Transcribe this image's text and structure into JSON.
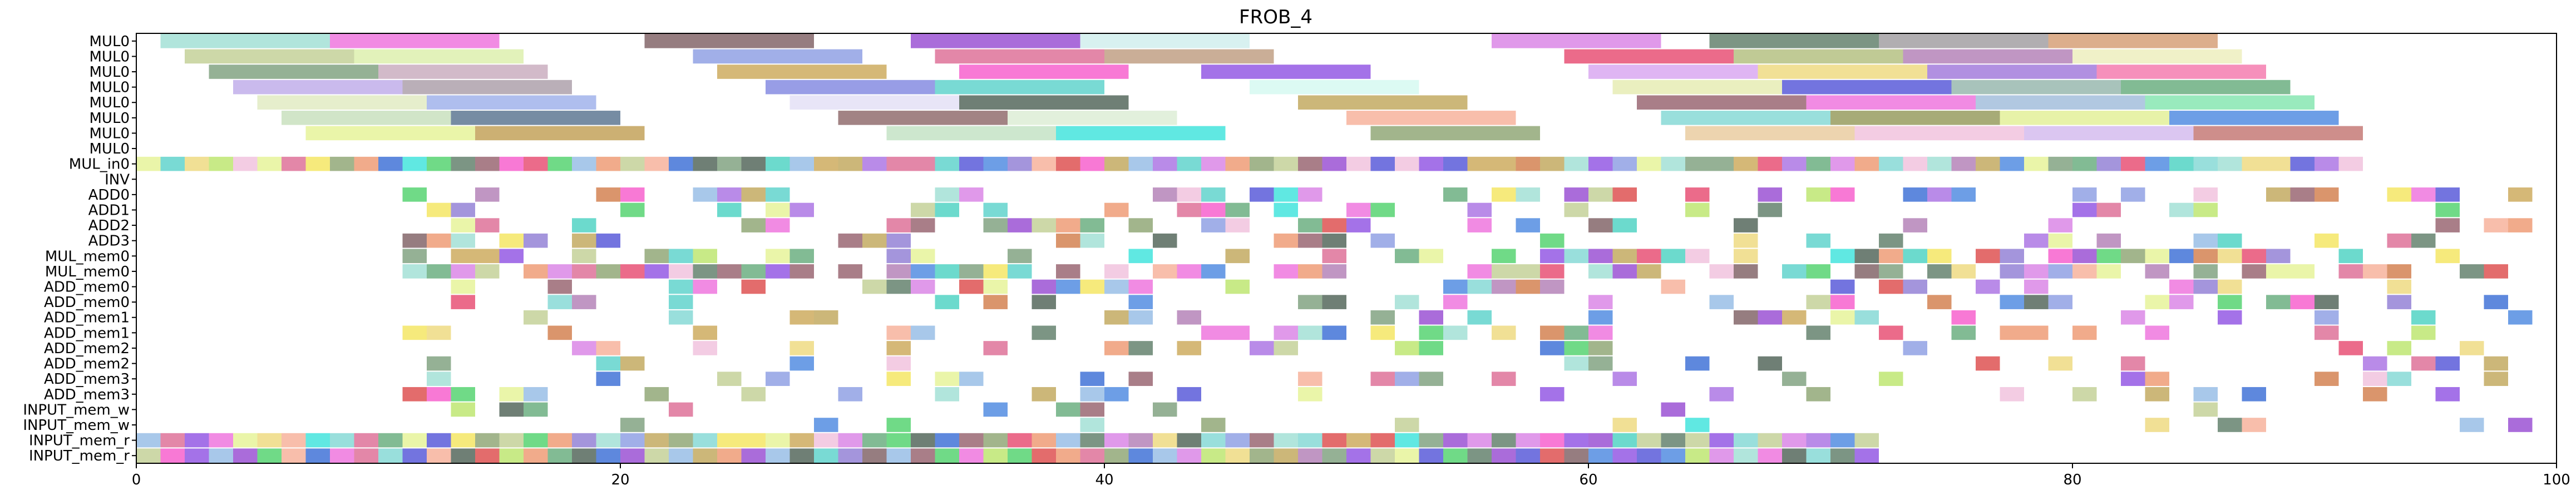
{
  "chart_data": {
    "type": "gantt",
    "title": "FROB_4",
    "xlim": [
      0,
      100
    ],
    "xticks": [
      0,
      20,
      40,
      60,
      80,
      100
    ],
    "rows": [
      "MUL0",
      "MUL0",
      "MUL0",
      "MUL0",
      "MUL0",
      "MUL0",
      "MUL0",
      "MUL0",
      "MUL_in0",
      "INV",
      "ADD0",
      "ADD1",
      "ADD2",
      "ADD3",
      "MUL_mem0",
      "MUL_mem0",
      "ADD_mem0",
      "ADD_mem0",
      "ADD_mem1",
      "ADD_mem1",
      "ADD_mem2",
      "ADD_mem2",
      "ADD_mem3",
      "ADD_mem3",
      "INPUT_mem_w",
      "INPUT_mem_w",
      "INPUT_mem_r",
      "INPUT_mem_r"
    ],
    "long_rows": [
      {
        "row": 0,
        "tasks": [
          {
            "start": 1,
            "end": 8,
            "color": "#a8e2d8"
          },
          {
            "start": 8,
            "end": 15,
            "color": "#f07ee0"
          },
          {
            "start": 21,
            "end": 28,
            "color": "#8b6f72"
          },
          {
            "start": 32,
            "end": 39,
            "color": "#a15cd6"
          },
          {
            "start": 39,
            "end": 46,
            "color": "#d4efee"
          },
          {
            "start": 56,
            "end": 63,
            "color": "#dd8ee8"
          },
          {
            "start": 65,
            "end": 72,
            "color": "#6e8a77"
          },
          {
            "start": 72,
            "end": 79,
            "color": "#a9a5a9"
          },
          {
            "start": 79,
            "end": 86,
            "color": "#d8a57f"
          }
        ]
      },
      {
        "row": 1,
        "tasks": [
          {
            "start": 2,
            "end": 9,
            "color": "#c8d49e"
          },
          {
            "start": 9,
            "end": 16,
            "color": "#dff1b2"
          },
          {
            "start": 23,
            "end": 30,
            "color": "#97a6e6"
          },
          {
            "start": 33,
            "end": 40,
            "color": "#e07a9f"
          },
          {
            "start": 40,
            "end": 47,
            "color": "#c4a58c"
          },
          {
            "start": 59,
            "end": 66,
            "color": "#e95b7d"
          },
          {
            "start": 66,
            "end": 73,
            "color": "#b9c48a"
          },
          {
            "start": 73,
            "end": 80,
            "color": "#b98bbd"
          },
          {
            "start": 80,
            "end": 87,
            "color": "#eef0c2"
          }
        ]
      },
      {
        "row": 2,
        "tasks": [
          {
            "start": 3,
            "end": 10,
            "color": "#8aa989"
          },
          {
            "start": 10,
            "end": 17,
            "color": "#cdb3c3"
          },
          {
            "start": 24,
            "end": 31,
            "color": "#d0b068"
          },
          {
            "start": 34,
            "end": 41,
            "color": "#f76ad0"
          },
          {
            "start": 44,
            "end": 51,
            "color": "#9a63e6"
          },
          {
            "start": 60,
            "end": 67,
            "color": "#dcadf2"
          },
          {
            "start": 67,
            "end": 74,
            "color": "#efdd8a"
          },
          {
            "start": 74,
            "end": 81,
            "color": "#a884de"
          },
          {
            "start": 81,
            "end": 88,
            "color": "#f584b4"
          }
        ]
      },
      {
        "row": 3,
        "tasks": [
          {
            "start": 4,
            "end": 11,
            "color": "#c4b2eb"
          },
          {
            "start": 11,
            "end": 18,
            "color": "#b2a6b0"
          },
          {
            "start": 26,
            "end": 33,
            "color": "#8d92e3"
          },
          {
            "start": 33,
            "end": 40,
            "color": "#6ad6cf"
          },
          {
            "start": 46,
            "end": 53,
            "color": "#d8f9f2"
          },
          {
            "start": 61,
            "end": 68,
            "color": "#e8edb8"
          },
          {
            "start": 68,
            "end": 75,
            "color": "#6465dc"
          },
          {
            "start": 75,
            "end": 82,
            "color": "#9fbdb4"
          },
          {
            "start": 82,
            "end": 89,
            "color": "#74b488"
          }
        ]
      },
      {
        "row": 4,
        "tasks": [
          {
            "start": 5,
            "end": 12,
            "color": "#e3ecc7"
          },
          {
            "start": 12,
            "end": 19,
            "color": "#a6b7ec"
          },
          {
            "start": 27,
            "end": 34,
            "color": "#e6e2f6"
          },
          {
            "start": 34,
            "end": 41,
            "color": "#5f7166"
          },
          {
            "start": 48,
            "end": 55,
            "color": "#c7af6a"
          },
          {
            "start": 62,
            "end": 69,
            "color": "#a0707b"
          },
          {
            "start": 69,
            "end": 76,
            "color": "#f07ee0"
          },
          {
            "start": 76,
            "end": 83,
            "color": "#a8c2de"
          },
          {
            "start": 83,
            "end": 90,
            "color": "#8ee8b6"
          }
        ]
      },
      {
        "row": 5,
        "tasks": [
          {
            "start": 6,
            "end": 13,
            "color": "#cce2c2"
          },
          {
            "start": 13,
            "end": 20,
            "color": "#677f99"
          },
          {
            "start": 29,
            "end": 36,
            "color": "#987677"
          },
          {
            "start": 36,
            "end": 43,
            "color": "#dfeed8"
          },
          {
            "start": 50,
            "end": 57,
            "color": "#f7b7a2"
          },
          {
            "start": 63,
            "end": 70,
            "color": "#8edcd8"
          },
          {
            "start": 70,
            "end": 77,
            "color": "#9da268"
          },
          {
            "start": 77,
            "end": 84,
            "color": "#e4f19e"
          },
          {
            "start": 84,
            "end": 91,
            "color": "#5d93e3"
          }
        ]
      },
      {
        "row": 6,
        "tasks": [
          {
            "start": 7,
            "end": 14,
            "color": "#e8f4a0"
          },
          {
            "start": 14,
            "end": 21,
            "color": "#c6a764"
          },
          {
            "start": 31,
            "end": 38,
            "color": "#c8e4c9"
          },
          {
            "start": 38,
            "end": 45,
            "color": "#4fe6df"
          },
          {
            "start": 51,
            "end": 58,
            "color": "#98ad80"
          },
          {
            "start": 64,
            "end": 71,
            "color": "#ebcfa6"
          },
          {
            "start": 71,
            "end": 78,
            "color": "#f2c6e0"
          },
          {
            "start": 78,
            "end": 85,
            "color": "#d7c0f0"
          },
          {
            "start": 85,
            "end": 92,
            "color": "#c9827e"
          }
        ]
      }
    ]
  }
}
